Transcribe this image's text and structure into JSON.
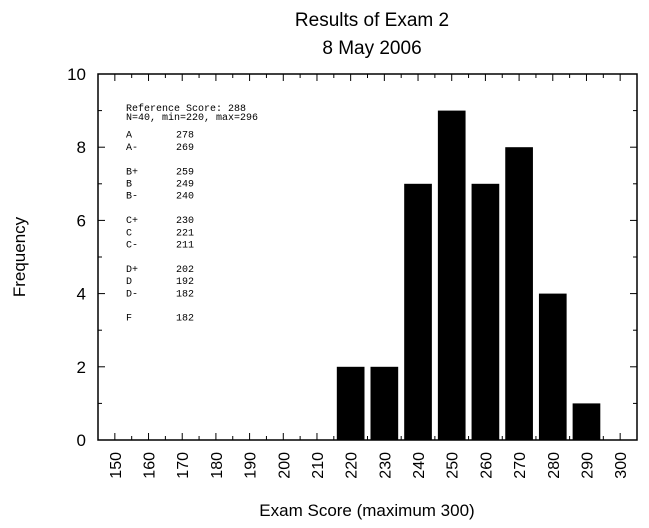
{
  "chart_data": {
    "type": "bar",
    "title": "Results of Exam 2",
    "subtitle": "8 May 2006",
    "xlabel": "Exam Score (maximum 300)",
    "ylabel": "Frequency",
    "xlim": [
      145,
      305
    ],
    "ylim": [
      0,
      10
    ],
    "x_ticks": [
      "150",
      "160",
      "170",
      "180",
      "190",
      "200",
      "210",
      "220",
      "230",
      "240",
      "250",
      "260",
      "270",
      "280",
      "290",
      "300"
    ],
    "y_ticks": [
      "0",
      "2",
      "4",
      "6",
      "8",
      "10"
    ],
    "bin_width": 10,
    "bins": [
      {
        "x": 220,
        "value": 2
      },
      {
        "x": 230,
        "value": 2
      },
      {
        "x": 240,
        "value": 7
      },
      {
        "x": 250,
        "value": 9
      },
      {
        "x": 260,
        "value": 7
      },
      {
        "x": 270,
        "value": 8
      },
      {
        "x": 280,
        "value": 4
      },
      {
        "x": 290,
        "value": 1
      }
    ],
    "bar_color": "#000000",
    "grid": false,
    "annotation": {
      "lines": [
        "Reference Score: 288",
        "N=40, min=220, max=296"
      ],
      "grades": [
        [
          {
            "grade": "A",
            "score": "278"
          },
          {
            "grade": "A-",
            "score": "269"
          }
        ],
        [
          {
            "grade": "B+",
            "score": "259"
          },
          {
            "grade": "B",
            "score": "249"
          },
          {
            "grade": "B-",
            "score": "240"
          }
        ],
        [
          {
            "grade": "C+",
            "score": "230"
          },
          {
            "grade": "C",
            "score": "221"
          },
          {
            "grade": "C-",
            "score": "211"
          }
        ],
        [
          {
            "grade": "D+",
            "score": "202"
          },
          {
            "grade": "D",
            "score": "192"
          },
          {
            "grade": "D-",
            "score": "182"
          }
        ],
        [
          {
            "grade": "F",
            "score": "182"
          }
        ]
      ]
    }
  }
}
